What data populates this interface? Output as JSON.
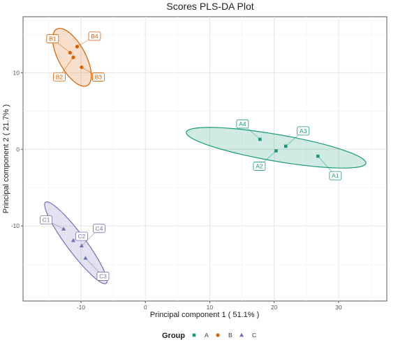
{
  "chart_data": {
    "type": "scatter",
    "title": "Scores PLS-DA Plot",
    "xlabel": "Principal component 1 ( 51.1% )",
    "ylabel": "Principal component 2 ( 21.7% )",
    "xlim": [
      -19,
      37.5
    ],
    "ylim": [
      -19.8,
      17.3
    ],
    "xticks": [
      -10,
      0,
      10,
      20,
      30
    ],
    "yticks": [
      -10,
      0,
      10
    ],
    "grid": true,
    "legend": {
      "title": "Group",
      "position": "bottom"
    },
    "series": [
      {
        "name": "A",
        "color": "#1a9a78",
        "marker": "square",
        "points": [
          {
            "label": "A1",
            "x": 26.8,
            "y": -0.9
          },
          {
            "label": "A2",
            "x": 20.3,
            "y": -0.2
          },
          {
            "label": "A3",
            "x": 21.8,
            "y": 0.4
          },
          {
            "label": "A4",
            "x": 17.8,
            "y": 1.3
          }
        ],
        "ellipse": {
          "cx": 20.3,
          "cy": 0.2,
          "rx": 14.1,
          "ry": 1.75,
          "angle": -8.2
        }
      },
      {
        "name": "B",
        "color": "#d95f02",
        "marker": "circle",
        "points": [
          {
            "label": "B1",
            "x": -11.7,
            "y": 12.6
          },
          {
            "label": "B2",
            "x": -11.2,
            "y": 12.0
          },
          {
            "label": "B3",
            "x": -9.9,
            "y": 10.7
          },
          {
            "label": "B4",
            "x": -10.6,
            "y": 13.4
          }
        ],
        "ellipse": {
          "cx": -11.4,
          "cy": 12.0,
          "rx": 4.4,
          "ry": 2.0,
          "angle": -55
        }
      },
      {
        "name": "C",
        "color": "#7570b3",
        "marker": "triangle",
        "points": [
          {
            "label": "C1",
            "x": -12.7,
            "y": -10.4
          },
          {
            "label": "C2",
            "x": -11.2,
            "y": -11.9
          },
          {
            "label": "C3",
            "x": -9.3,
            "y": -14.2
          },
          {
            "label": "C4",
            "x": -9.9,
            "y": -12.6
          }
        ],
        "ellipse": {
          "cx": -10.8,
          "cy": -12.2,
          "rx": 7.1,
          "ry": 1.35,
          "angle": -48
        }
      }
    ]
  }
}
